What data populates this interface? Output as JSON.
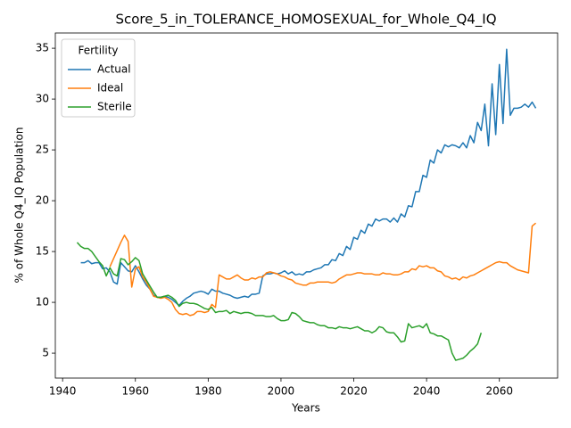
{
  "chart_data": {
    "type": "line",
    "title": "Score_5_in_TOLERANCE_HOMOSEXUAL_for_Whole_Q4_IQ",
    "x_label": "Years",
    "y_label": "% of Whole Q4_IQ Population",
    "legend_title": "Fertility",
    "legend": "upper left",
    "xlim": [
      1938,
      2076
    ],
    "ylim": [
      2.55,
      36.5
    ],
    "xticks": [
      1940,
      1960,
      1980,
      2000,
      2020,
      2040,
      2060
    ],
    "yticks": [
      5,
      10,
      15,
      20,
      25,
      30,
      35
    ],
    "x": [
      1944,
      1945,
      1946,
      1947,
      1948,
      1949,
      1950,
      1951,
      1952,
      1953,
      1954,
      1955,
      1956,
      1957,
      1958,
      1959,
      1960,
      1961,
      1962,
      1963,
      1964,
      1965,
      1966,
      1967,
      1968,
      1969,
      1970,
      1971,
      1972,
      1973,
      1974,
      1975,
      1976,
      1977,
      1978,
      1979,
      1980,
      1981,
      1982,
      1983,
      1984,
      1985,
      1986,
      1987,
      1988,
      1989,
      1990,
      1991,
      1992,
      1993,
      1994,
      1995,
      1996,
      1997,
      1998,
      1999,
      2000,
      2001,
      2002,
      2003,
      2004,
      2005,
      2006,
      2007,
      2008,
      2009,
      2010,
      2011,
      2012,
      2013,
      2014,
      2015,
      2016,
      2017,
      2018,
      2019,
      2020,
      2021,
      2022,
      2023,
      2024,
      2025,
      2026,
      2027,
      2028,
      2029,
      2030,
      2031,
      2032,
      2033,
      2034,
      2035,
      2036,
      2037,
      2038,
      2039,
      2040,
      2041,
      2042,
      2043,
      2044,
      2045,
      2046,
      2047,
      2048,
      2049,
      2050,
      2051,
      2052,
      2053,
      2054,
      2055,
      2056,
      2057,
      2058,
      2059,
      2060,
      2061,
      2062,
      2063,
      2064,
      2065,
      2066,
      2067,
      2068,
      2069,
      2070
    ],
    "series": [
      {
        "name": "Actual",
        "color": "#1f77b4",
        "values": [
          null,
          13.9,
          13.9,
          14.1,
          13.8,
          13.9,
          13.9,
          13.3,
          13.4,
          13.0,
          12.0,
          11.8,
          13.9,
          13.5,
          13.1,
          13.0,
          13.6,
          13.0,
          12.3,
          11.7,
          11.3,
          10.7,
          10.5,
          10.5,
          10.6,
          10.5,
          10.3,
          10.0,
          9.7,
          10.1,
          10.4,
          10.6,
          10.9,
          11.0,
          11.1,
          11.0,
          10.8,
          11.3,
          11.1,
          11.1,
          10.9,
          10.8,
          10.7,
          10.5,
          10.4,
          10.5,
          10.6,
          10.5,
          10.8,
          10.8,
          10.9,
          12.6,
          12.8,
          12.8,
          12.9,
          12.8,
          12.9,
          13.1,
          12.8,
          13.0,
          12.7,
          12.8,
          12.7,
          13.0,
          13.0,
          13.2,
          13.3,
          13.4,
          13.7,
          13.7,
          14.2,
          14.1,
          14.8,
          14.6,
          15.5,
          15.2,
          16.4,
          16.2,
          17.1,
          16.8,
          17.7,
          17.5,
          18.2,
          18.0,
          18.2,
          18.2,
          17.9,
          18.3,
          17.9,
          18.7,
          18.4,
          19.5,
          19.4,
          20.9,
          20.9,
          22.5,
          22.3,
          24.0,
          23.7,
          25.0,
          24.7,
          25.5,
          25.3,
          25.5,
          25.4,
          25.2,
          25.7,
          25.2,
          26.4,
          25.7,
          27.7,
          26.9,
          29.5,
          25.4,
          31.5,
          26.5,
          33.4,
          27.6,
          34.9,
          28.4,
          29.1,
          29.1,
          29.2,
          29.5,
          29.2,
          29.7,
          29.1
        ]
      },
      {
        "name": "Ideal",
        "color": "#ff7f0e",
        "values": [
          null,
          null,
          null,
          null,
          null,
          null,
          null,
          null,
          null,
          13.5,
          14.3,
          15.1,
          15.9,
          16.6,
          16.0,
          11.5,
          13.3,
          13.5,
          12.5,
          12.0,
          11.3,
          10.6,
          10.5,
          10.4,
          10.5,
          10.3,
          10.0,
          9.3,
          8.9,
          8.8,
          8.9,
          8.7,
          8.8,
          9.1,
          9.1,
          9.0,
          9.1,
          9.8,
          9.5,
          12.7,
          12.5,
          12.3,
          12.3,
          12.5,
          12.7,
          12.4,
          12.2,
          12.2,
          12.4,
          12.3,
          12.5,
          12.5,
          12.9,
          13.0,
          12.9,
          12.8,
          12.6,
          12.5,
          12.3,
          12.2,
          11.9,
          11.8,
          11.7,
          11.7,
          11.9,
          11.9,
          12.0,
          12.0,
          12.0,
          12.0,
          11.9,
          12.0,
          12.3,
          12.5,
          12.7,
          12.7,
          12.8,
          12.9,
          12.9,
          12.8,
          12.8,
          12.8,
          12.7,
          12.7,
          12.9,
          12.8,
          12.8,
          12.7,
          12.7,
          12.8,
          13.0,
          13.0,
          13.3,
          13.2,
          13.6,
          13.5,
          13.6,
          13.4,
          13.4,
          13.1,
          13.0,
          12.6,
          12.5,
          12.3,
          12.4,
          12.2,
          12.5,
          12.4,
          12.6,
          12.7,
          12.9,
          13.1,
          13.3,
          13.5,
          13.7,
          13.9,
          14.0,
          13.9,
          13.9,
          13.6,
          13.4,
          13.2,
          13.1,
          13.0,
          12.9,
          17.5,
          17.8
        ]
      },
      {
        "name": "Sterile",
        "color": "#2ca02c",
        "values": [
          15.9,
          15.5,
          15.3,
          15.3,
          15.0,
          14.5,
          14.0,
          13.6,
          12.6,
          13.4,
          12.8,
          12.6,
          14.3,
          14.2,
          13.7,
          14.0,
          14.4,
          14.1,
          12.8,
          12.2,
          11.6,
          11.0,
          10.5,
          10.5,
          10.6,
          10.7,
          10.5,
          10.2,
          9.6,
          9.9,
          10.0,
          9.9,
          9.9,
          9.8,
          9.6,
          9.4,
          9.3,
          9.5,
          9.0,
          9.1,
          9.1,
          9.2,
          8.9,
          9.1,
          9.0,
          8.9,
          9.0,
          9.0,
          8.9,
          8.7,
          8.7,
          8.7,
          8.6,
          8.6,
          8.7,
          8.4,
          8.2,
          8.2,
          8.3,
          9.0,
          8.9,
          8.6,
          8.2,
          8.1,
          8.0,
          8.0,
          7.8,
          7.7,
          7.7,
          7.5,
          7.5,
          7.4,
          7.6,
          7.5,
          7.5,
          7.4,
          7.5,
          7.6,
          7.4,
          7.2,
          7.2,
          7.0,
          7.2,
          7.6,
          7.5,
          7.1,
          7.0,
          7.0,
          6.6,
          6.1,
          6.2,
          7.9,
          7.5,
          7.6,
          7.7,
          7.5,
          7.9,
          7.0,
          6.9,
          6.7,
          6.7,
          6.5,
          6.3,
          5.0,
          4.3,
          4.4,
          4.5,
          4.8,
          5.2,
          5.5,
          5.9,
          7.0,
          null,
          null,
          null,
          null,
          null,
          null,
          null,
          null,
          null,
          null,
          null,
          null,
          null,
          null,
          null
        ]
      }
    ]
  }
}
